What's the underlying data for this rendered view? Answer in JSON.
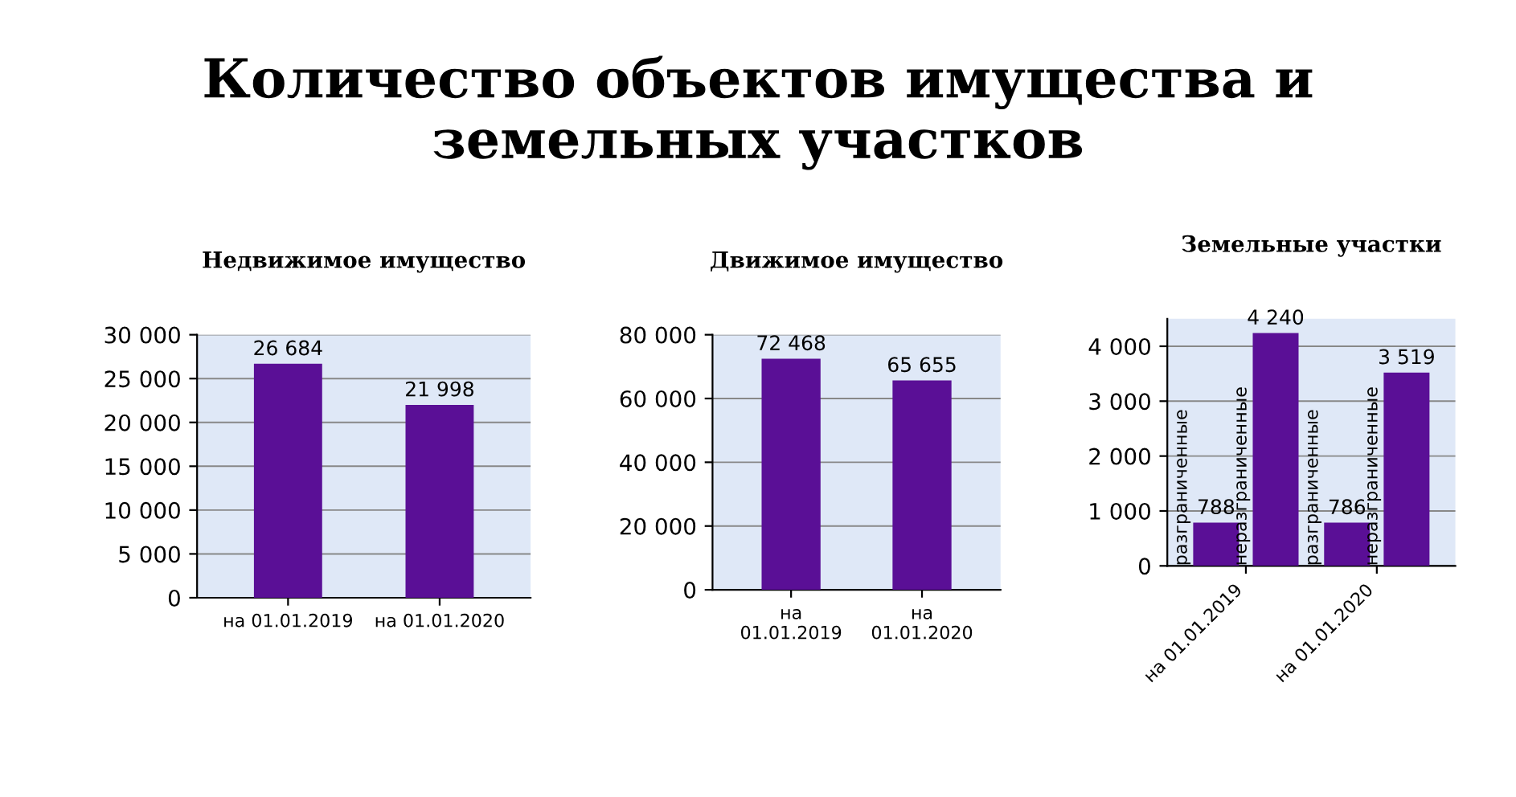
{
  "chart_data": [
    {
      "type": "other",
      "title": "Количество объектов имущества и земельных участков"
    },
    {
      "type": "bar",
      "title": "Недвижимое имущество",
      "categories": [
        "на 01.01.2019",
        "на 01.01.2020"
      ],
      "series": [
        {
          "color": "#5a0f96",
          "values": [
            26684,
            21998
          ],
          "value_labels": [
            "26 684",
            "21 998"
          ]
        }
      ],
      "ylim": [
        0,
        30000
      ],
      "yticks": [
        0,
        {
          "value": 5000,
          "label": "5 000"
        },
        {
          "value": 10000,
          "label": "10 000"
        },
        {
          "value": 15000,
          "label": "15 000"
        },
        {
          "value": 20000,
          "label": "20 000"
        },
        {
          "value": 25000,
          "label": "25 000"
        },
        {
          "value": 30000,
          "label": "30 000"
        }
      ],
      "grid": "y"
    },
    {
      "type": "bar",
      "title": "Движимое имущество",
      "categories": [
        "на\n01.01.2019",
        "на\n01.01.2020"
      ],
      "series": [
        {
          "color": "#5a0f96",
          "values": [
            72468,
            65655
          ],
          "value_labels": [
            "72 468",
            "65 655"
          ]
        }
      ],
      "ylim": [
        0,
        80000
      ],
      "yticks": [
        0,
        {
          "value": 20000,
          "label": "20 000"
        },
        {
          "value": 40000,
          "label": "40 000"
        },
        {
          "value": 60000,
          "label": "60 000"
        },
        {
          "value": 80000,
          "label": "80 000"
        }
      ],
      "grid": "y"
    },
    {
      "type": "bar",
      "title": "Земельные участки",
      "categories": [
        "на 01.01.2019",
        "на 01.01.2020"
      ],
      "series": [
        {
          "name": "разграниченные",
          "color": "#5a0f96",
          "values": [
            788,
            786
          ],
          "value_labels": [
            "788",
            "786"
          ]
        },
        {
          "name": "неразграниченные",
          "color": "#5a0f96",
          "values": [
            4240,
            3519
          ],
          "value_labels": [
            "4 240",
            "3 519"
          ]
        }
      ],
      "ylim": [
        0,
        4500
      ],
      "yticks": [
        0,
        {
          "value": 1000,
          "label": "1 000"
        },
        {
          "value": 2000,
          "label": "2 000"
        },
        {
          "value": 3000,
          "label": "3 000"
        },
        {
          "value": 4000,
          "label": "4 000"
        }
      ],
      "grid": "y"
    }
  ]
}
